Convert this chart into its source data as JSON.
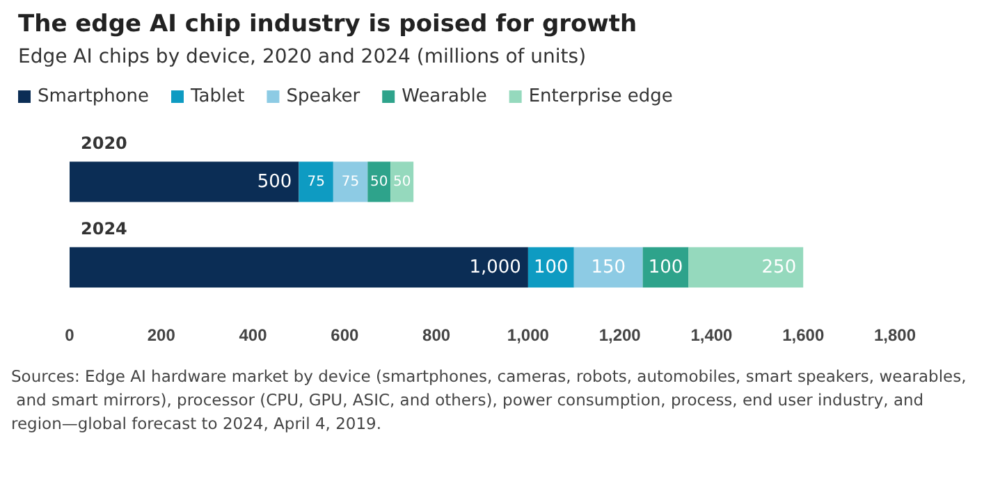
{
  "chart_data": {
    "type": "bar",
    "orientation": "horizontal",
    "stacked": true,
    "title": "The edge AI chip industry is poised for growth",
    "subtitle": "Edge AI chips by device, 2020 and 2024 (millions of units)",
    "categories": [
      "2020",
      "2024"
    ],
    "series": [
      {
        "name": "Smartphone",
        "color": "#0b2d55",
        "values": [
          500,
          1000
        ],
        "value_labels": [
          "500",
          "1,000"
        ]
      },
      {
        "name": "Tablet",
        "color": "#0e9bc2",
        "values": [
          75,
          100
        ],
        "value_labels": [
          "75",
          "100"
        ]
      },
      {
        "name": "Speaker",
        "color": "#8dcbe4",
        "values": [
          75,
          150
        ],
        "value_labels": [
          "75",
          "150"
        ]
      },
      {
        "name": "Wearable",
        "color": "#2ea38b",
        "values": [
          50,
          100
        ],
        "value_labels": [
          "50",
          "100"
        ]
      },
      {
        "name": "Enterprise edge",
        "color": "#95d9bd",
        "values": [
          50,
          250
        ],
        "value_labels": [
          "50",
          "250"
        ]
      }
    ],
    "xlim": [
      0,
      1800
    ],
    "xticks": [
      0,
      {
        "value": 200,
        "label": "200"
      },
      {
        "value": 400,
        "label": "400"
      },
      {
        "value": 600,
        "label": "600"
      },
      {
        "value": 800,
        "label": "800"
      },
      {
        "value": 1000,
        "label": "1,000"
      },
      {
        "value": 1200,
        "label": "1,200"
      },
      {
        "value": 1400,
        "label": "1,400"
      },
      {
        "value": 1600,
        "label": "1,600"
      },
      {
        "value": 1800,
        "label": "1,800"
      }
    ],
    "grid": false,
    "legend": "top left",
    "annotations": [
      "Sources: Edge AI hardware market by device (smartphones, cameras, robots, automobiles, smart speakers, wearables, and smart mirrors), processor (CPU, GPU, ASIC, and others), power consumption, process, end user industry, and region—global forecast to 2024, April 4, 2019."
    ]
  }
}
